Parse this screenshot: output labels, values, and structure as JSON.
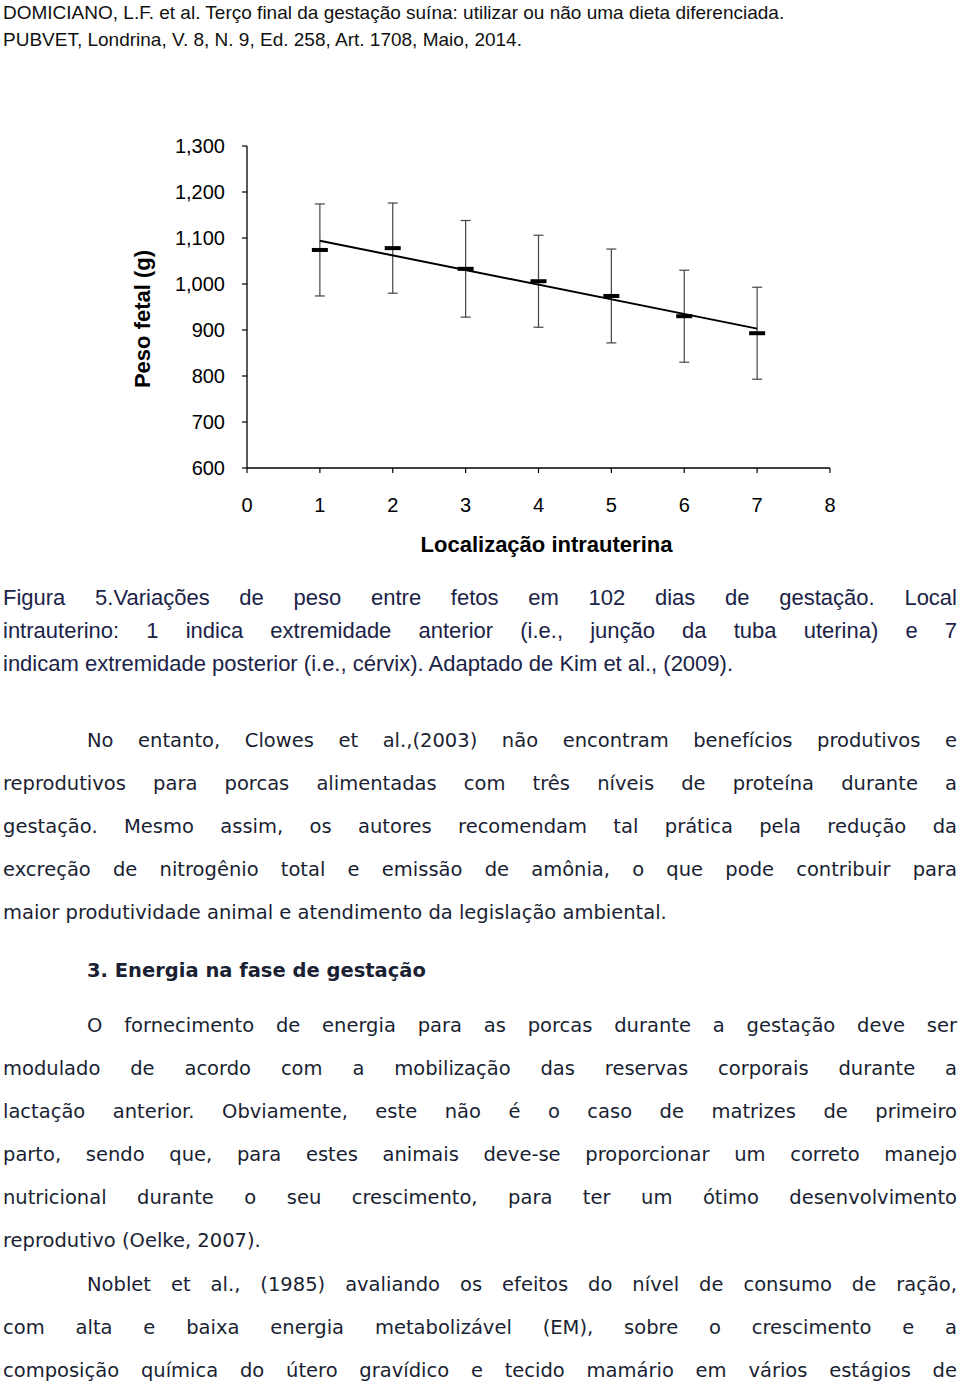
{
  "header": {
    "line_1": "DOMICIANO, L.F. et al. Terço final da gestação suína: utilizar ou não uma dieta diferenciada.",
    "line_2": "PUBVET, Londrina, V. 8, N. 9, Ed. 258, Art. 1708, Maio, 2014."
  },
  "chart_data": {
    "type": "scatter",
    "x_label": "Localização intrauterina",
    "y_label": "Peso fetal (g)",
    "x": [
      1,
      2,
      3,
      4,
      5,
      6,
      7
    ],
    "series": [
      {
        "type": "scatter",
        "marker": "dash",
        "color": "#000000",
        "values": [
          1074,
          1078,
          1033,
          1006,
          974,
          930,
          893
        ],
        "errors": [
          100,
          98,
          105,
          100,
          102,
          100,
          100
        ]
      },
      {
        "type": "line",
        "line_style": "solid",
        "color": "#000000",
        "x": [
          1,
          7
        ],
        "values": [
          1094,
          903
        ]
      }
    ],
    "xlim": [
      0,
      8
    ],
    "xticks": [
      0,
      1,
      2,
      3,
      4,
      5,
      6,
      7,
      8
    ],
    "ylim": [
      600,
      1300
    ],
    "yticks": [
      600,
      700,
      800,
      900,
      {
        "value": 1000,
        "label": "1,000"
      },
      {
        "value": 1100,
        "label": "1,100"
      },
      {
        "value": 1200,
        "label": "1,200"
      },
      {
        "value": 1300,
        "label": "1,300"
      }
    ],
    "grid": false
  },
  "caption": [
    "Figura 5.Variações de peso entre fetos em 102 dias de gestação. Local",
    "intrauterino: 1 indica extremidade anterior (i.e., junção da tuba uterina) e 7",
    "indicam extremidade posterior (i.e., cérvix). Adaptado de Kim et al., (2009)."
  ],
  "body": {
    "paragraph_1": [
      "No entanto, Clowes et al.,(2003) não encontram benefícios produtivos e",
      "reprodutivos para porcas alimentadas com três níveis de proteína durante a",
      "gestação. Mesmo assim, os autores recomendam tal prática pela redução da",
      "excreção de nitrogênio total e emissão de amônia, o que pode contribuir para",
      "maior produtividade animal e atendimento da legislação ambiental."
    ],
    "heading": "3. Energia na fase de gestação",
    "paragraph_2": [
      "O fornecimento de energia para as porcas durante a gestação deve ser",
      "modulado de acordo com a mobilização das reservas corporais durante a",
      "lactação anterior. Obviamente, este não é o caso de matrizes de primeiro",
      "parto, sendo que, para estes animais deve-se proporcionar um correto manejo",
      "nutricional durante o seu crescimento, para ter um ótimo desenvolvimento",
      "reprodutivo (Oelke, 2007)."
    ],
    "paragraph_3": [
      "Noblet et al., (1985) avaliando os efeitos do nível de consumo de ração,",
      "com alta e baixa energia metabolizável (EM), sobre o crescimento e a",
      "composição química do útero gravídico e tecido mamário em vários estágios de"
    ]
  }
}
